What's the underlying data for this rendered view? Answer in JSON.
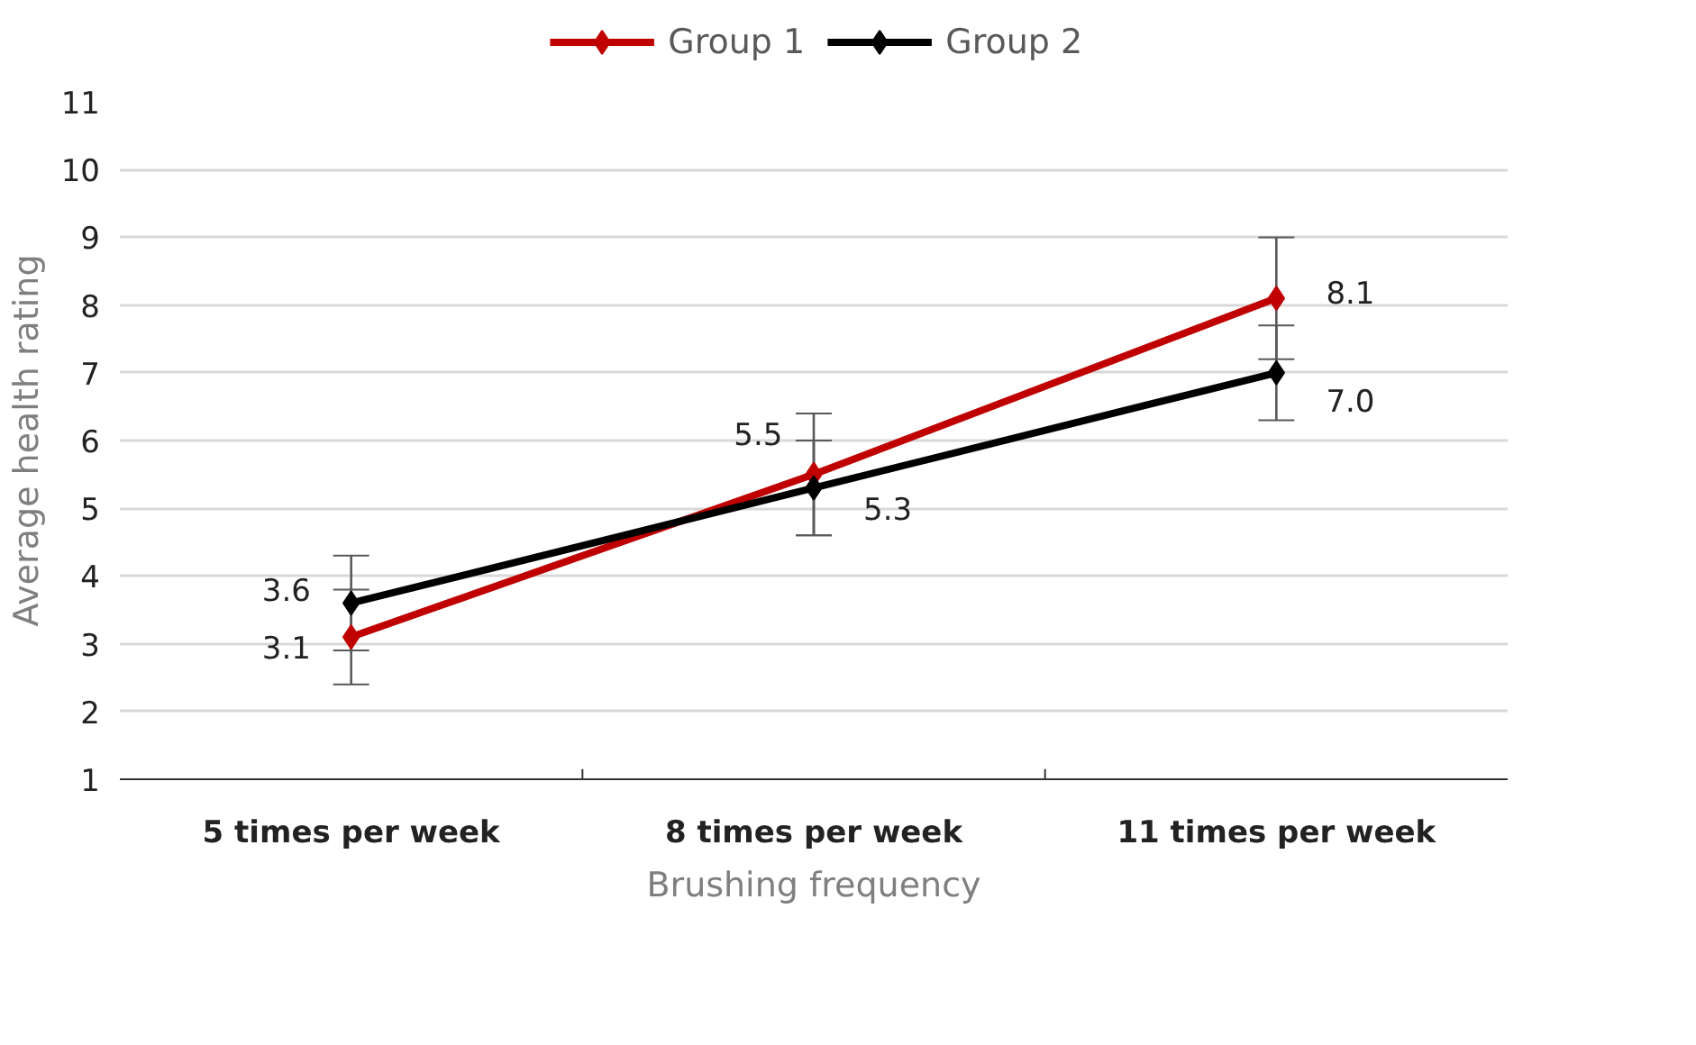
{
  "chart_data": {
    "type": "line",
    "xlabel": "Brushing frequency",
    "ylabel": "Average health rating",
    "categories": [
      "5 times per week",
      "8 times per week",
      "11 times per week"
    ],
    "series": [
      {
        "name": "Group 1",
        "color": "#c00000",
        "values": [
          3.1,
          5.5,
          8.1
        ],
        "errors": [
          0.7,
          0.9,
          0.9
        ],
        "value_labels": [
          "3.1",
          "5.5",
          "8.1"
        ]
      },
      {
        "name": "Group 2",
        "color": "#000000",
        "values": [
          3.6,
          5.3,
          7.0
        ],
        "errors": [
          0.7,
          0.7,
          0.7
        ],
        "value_labels": [
          "3.6",
          "5.3",
          "7.0"
        ]
      }
    ],
    "ylim": [
      1,
      11
    ],
    "yticks": [
      1,
      2,
      3,
      4,
      5,
      6,
      7,
      8,
      9,
      10,
      11
    ],
    "grid": "y",
    "legend": "top",
    "marker": "diamond",
    "line_style": "solid",
    "data_labels": true
  }
}
